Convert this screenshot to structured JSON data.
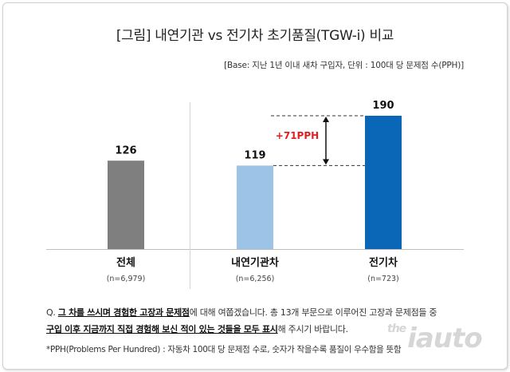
{
  "title": "[그림] 내연기관 vs 전기차 초기품질(TGW-i) 비교",
  "base_note": "[Base: 지난 1년 이내 새차 구입자, 단위 : 100대 당 문제점 수(PPH)]",
  "chart_data": {
    "type": "bar",
    "categories": [
      "전체",
      "내연기관차",
      "전기차"
    ],
    "sample_sizes": [
      "(n=6,979)",
      "(n=6,256)",
      "(n=723)"
    ],
    "values": [
      126,
      119,
      190
    ],
    "value_labels": [
      "126",
      "119",
      "190"
    ],
    "bar_colors": [
      "#7f7f7f",
      "#9dc3e6",
      "#0a67b8"
    ],
    "difference_label": "+71PPH",
    "difference_color": "#e02020"
  },
  "question": {
    "prefix": "Q. ",
    "bold1": "그 차를 쓰시며 경험한 고장과 문제점",
    "mid1": "에 대해 여쭙겠습니다. 총 13개 부문으로 이루어진 고장과 문제점들 중",
    "bold2": "구입 이후 지금까지 직접 경험해 보신 적이 있는 것들을 모두 표시",
    "mid2": "해 주시기 바랍니다."
  },
  "footnote": "*PPH(Problems Per Hundred) : 자동차 100대 당 문제점 수로, 숫자가 작을수록 품질이 우수함을 뜻함",
  "watermark": {
    "small": "the",
    "main": "iauto"
  }
}
